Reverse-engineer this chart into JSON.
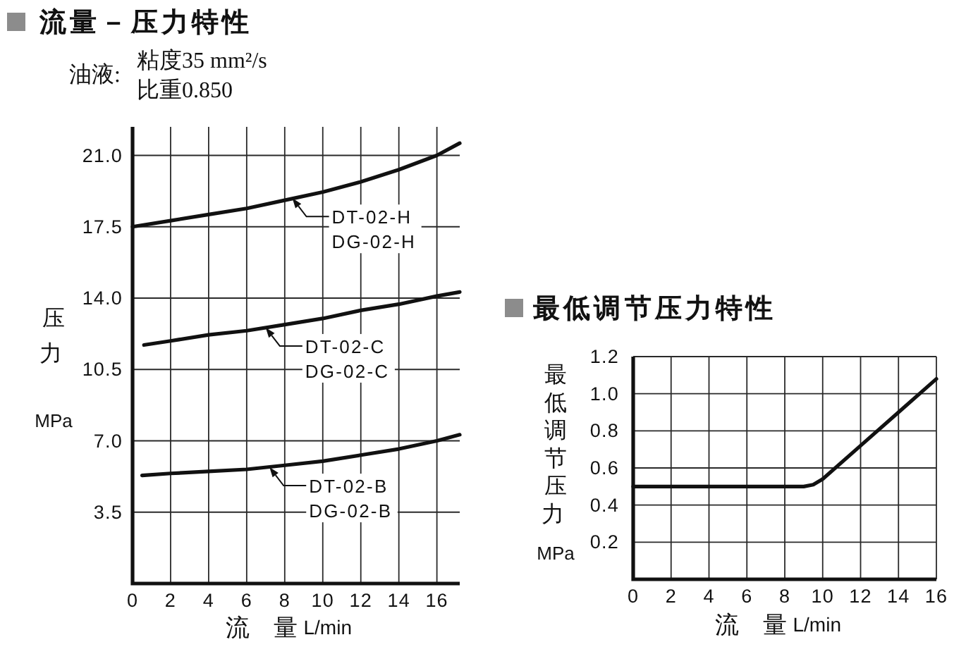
{
  "chart_data": [
    {
      "type": "line",
      "title": "流量－压力特性",
      "subtitle": "油液:",
      "annotations": [
        "粘度35 mm²/s",
        "比重0.850",
        {
          "text": "DT-02-H DG-02-H",
          "x": 8.4,
          "y": 18.9
        },
        {
          "text": "DT-02-C DG-02-C",
          "x": 7.0,
          "y": 12.55
        },
        {
          "text": "DT-02-B DG-02-B",
          "x": 7.2,
          "y": 5.7
        }
      ],
      "xlabel": "流　量 L/min",
      "ylabel": "压力 MPa",
      "xlim": [
        0,
        17.2
      ],
      "ylim": [
        0,
        22.4
      ],
      "xticks": [
        0,
        2,
        4,
        6,
        8,
        10,
        12,
        14,
        16
      ],
      "yticks": [
        {
          "value": 3.5,
          "label": "3.5"
        },
        {
          "value": 7,
          "label": "7.0"
        },
        {
          "value": 10.5,
          "label": "10.5"
        },
        {
          "value": 14,
          "label": "14.0"
        },
        {
          "value": 17.5,
          "label": "17.5"
        },
        {
          "value": 21,
          "label": "21.0"
        }
      ],
      "grid": true,
      "series": [
        {
          "color": "#111111",
          "x": [
            0,
            2,
            4,
            6,
            8,
            10,
            12,
            14,
            16,
            17.2
          ],
          "values": [
            17.5,
            17.8,
            18.1,
            18.4,
            18.8,
            19.2,
            19.7,
            20.3,
            21.0,
            21.6
          ]
        },
        {
          "color": "#111111",
          "x": [
            0.6,
            2,
            4,
            6,
            8,
            10,
            12,
            14,
            16,
            17.2
          ],
          "values": [
            11.7,
            11.9,
            12.2,
            12.4,
            12.7,
            13.0,
            13.4,
            13.7,
            14.1,
            14.3
          ]
        },
        {
          "color": "#111111",
          "x": [
            0.5,
            2,
            4,
            6,
            8,
            10,
            12,
            14,
            16,
            17.2
          ],
          "values": [
            5.3,
            5.4,
            5.5,
            5.6,
            5.8,
            6.0,
            6.3,
            6.6,
            7.0,
            7.3
          ]
        }
      ]
    },
    {
      "type": "line",
      "title": "最低调节压力特性",
      "xlabel": "流　量 L/min",
      "ylabel": "最低调节压力 MPa",
      "xlim": [
        0,
        16
      ],
      "ylim": [
        0,
        1.2
      ],
      "xticks": [
        0,
        2,
        4,
        6,
        8,
        10,
        12,
        14,
        16
      ],
      "yticks": [
        {
          "value": 0.2,
          "label": "0.2"
        },
        {
          "value": 0.4,
          "label": "0.4"
        },
        {
          "value": 0.6,
          "label": "0.6"
        },
        {
          "value": 0.8,
          "label": "0.8"
        },
        {
          "value": 1,
          "label": "1.0"
        },
        {
          "value": 1.2,
          "label": "1.2"
        }
      ],
      "grid": true,
      "series": [
        {
          "color": "#111111",
          "x": [
            0,
            9,
            9.5,
            10,
            12,
            14,
            16
          ],
          "values": [
            0.5,
            0.5,
            0.51,
            0.54,
            0.72,
            0.9,
            1.08
          ]
        }
      ]
    }
  ]
}
